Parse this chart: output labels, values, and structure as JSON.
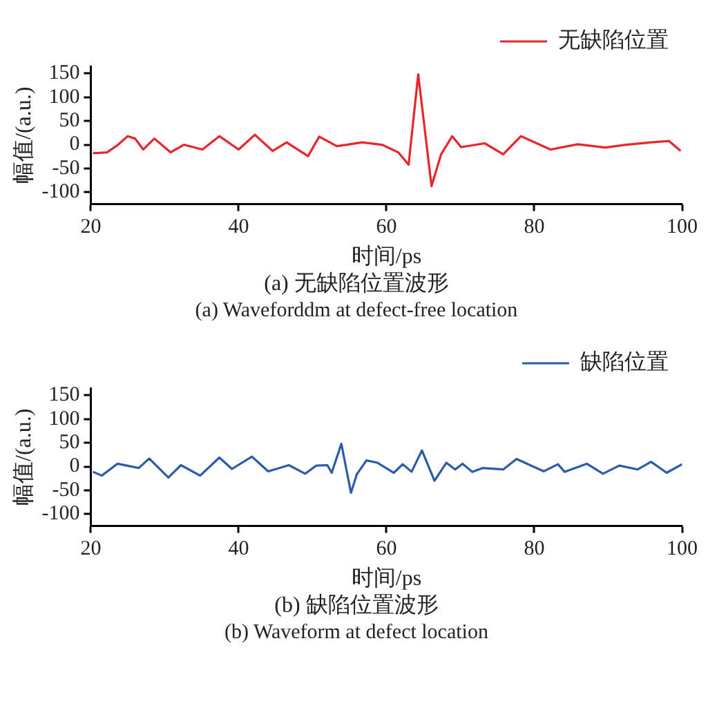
{
  "chart_data": [
    {
      "type": "line",
      "title": "(a) 无缺陷位置波形",
      "subtitle": "(a) Waveforddm at defect-free location",
      "xlabel": "时间/ps",
      "ylabel": "幅值/(a.u.)",
      "xlim": [
        20,
        100
      ],
      "xticks": [
        20,
        40,
        60,
        80,
        100
      ],
      "ylim": [
        -125,
        165
      ],
      "yticks": [
        -100,
        -50,
        0,
        50,
        100,
        150
      ],
      "legend": "top right",
      "marker": "none",
      "line_style": "solid",
      "series": [
        {
          "name": "无缺陷位置",
          "color": "#e8262a",
          "x": [
            20.3,
            22.2,
            23.7,
            25.0,
            26.0,
            27.1,
            28.6,
            30.8,
            32.6,
            35.1,
            37.4,
            40.0,
            42.2,
            44.6,
            46.5,
            49.4,
            50.9,
            53.3,
            56.7,
            59.4,
            61.6,
            63.0,
            64.3,
            66.1,
            67.4,
            68.9,
            70.1,
            73.3,
            75.8,
            78.2,
            82.2,
            85.9,
            89.6,
            92.4,
            95.8,
            98.2,
            99.8
          ],
          "values": [
            -18,
            -16,
            0,
            18,
            13,
            -10,
            13,
            -16,
            0,
            -10,
            18,
            -10,
            21,
            -13,
            5,
            -24,
            17,
            -3,
            5,
            0,
            -16,
            -42,
            148,
            -87,
            -20,
            18,
            -5,
            3,
            -20,
            18,
            -10,
            1,
            -6,
            0,
            5,
            8,
            -13
          ]
        }
      ]
    },
    {
      "type": "line",
      "title": "(b) 缺陷位置波形",
      "subtitle": "(b) Waveform at defect location",
      "xlabel": "时间/ps",
      "ylabel": "幅值/(a.u.)",
      "xlim": [
        20,
        100
      ],
      "xticks": [
        20,
        40,
        60,
        80,
        100
      ],
      "ylim": [
        -125,
        165
      ],
      "yticks": [
        -100,
        -50,
        0,
        50,
        100,
        150
      ],
      "legend": "top right",
      "marker": "none",
      "line_style": "solid",
      "series": [
        {
          "name": "缺陷位置",
          "color": "#2a5caa",
          "x": [
            20.3,
            21.5,
            23.6,
            26.5,
            27.9,
            30.5,
            32.2,
            34.8,
            37.4,
            39.1,
            41.8,
            44.0,
            46.8,
            49.0,
            50.5,
            52.0,
            52.6,
            53.9,
            55.2,
            56.0,
            57.3,
            58.8,
            61.0,
            62.2,
            63.4,
            64.8,
            66.5,
            68.1,
            69.3,
            70.3,
            71.6,
            73.0,
            75.8,
            77.6,
            81.3,
            83.2,
            84.1,
            87.1,
            89.3,
            91.5,
            94.0,
            95.8,
            97.9,
            100.0
          ],
          "values": [
            -11,
            -19,
            6,
            -3,
            17,
            -23,
            3,
            -19,
            19,
            -5,
            21,
            -10,
            3,
            -15,
            2,
            3,
            -13,
            48,
            -55,
            -16,
            13,
            8,
            -13,
            5,
            -11,
            34,
            -30,
            8,
            -6,
            6,
            -11,
            -3,
            -6,
            16,
            -10,
            5,
            -11,
            6,
            -15,
            2,
            -6,
            10,
            -13,
            5
          ]
        }
      ]
    }
  ]
}
